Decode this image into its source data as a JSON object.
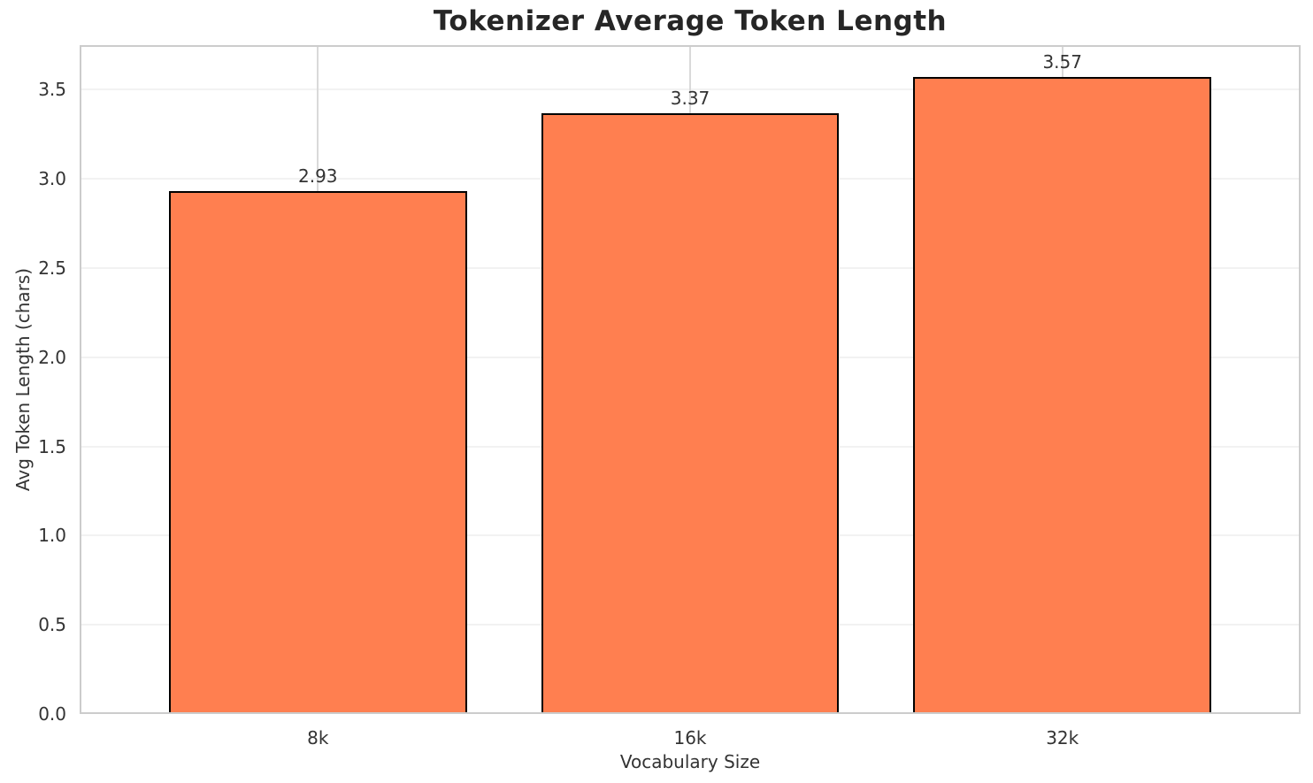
{
  "chart_data": {
    "type": "bar",
    "title": "Tokenizer Average Token Length",
    "xlabel": "Vocabulary Size",
    "ylabel": "Avg Token Length (chars)",
    "categories": [
      "8k",
      "16k",
      "32k"
    ],
    "values": [
      2.93,
      3.37,
      3.57
    ],
    "value_labels": [
      "2.93",
      "3.37",
      "3.57"
    ],
    "ytick_values": [
      0.0,
      0.5,
      1.0,
      1.5,
      2.0,
      2.5,
      3.0,
      3.5
    ],
    "ytick_labels": [
      "0.0",
      "0.5",
      "1.0",
      "1.5",
      "2.0",
      "2.5",
      "3.0",
      "3.5"
    ],
    "ylim": [
      0,
      3.75
    ],
    "bar_relative_width": 0.8,
    "grid": true,
    "legend": null,
    "colors": {
      "bar_fill": "#FF7F50",
      "bar_edge": "#000000",
      "grid_horizontal": "#f2f2f2",
      "grid_vertical": "#d9d9d9",
      "spine": "#cccccc",
      "title_text": "#262626",
      "tick_text": "#333333",
      "background": "#ffffff"
    }
  }
}
